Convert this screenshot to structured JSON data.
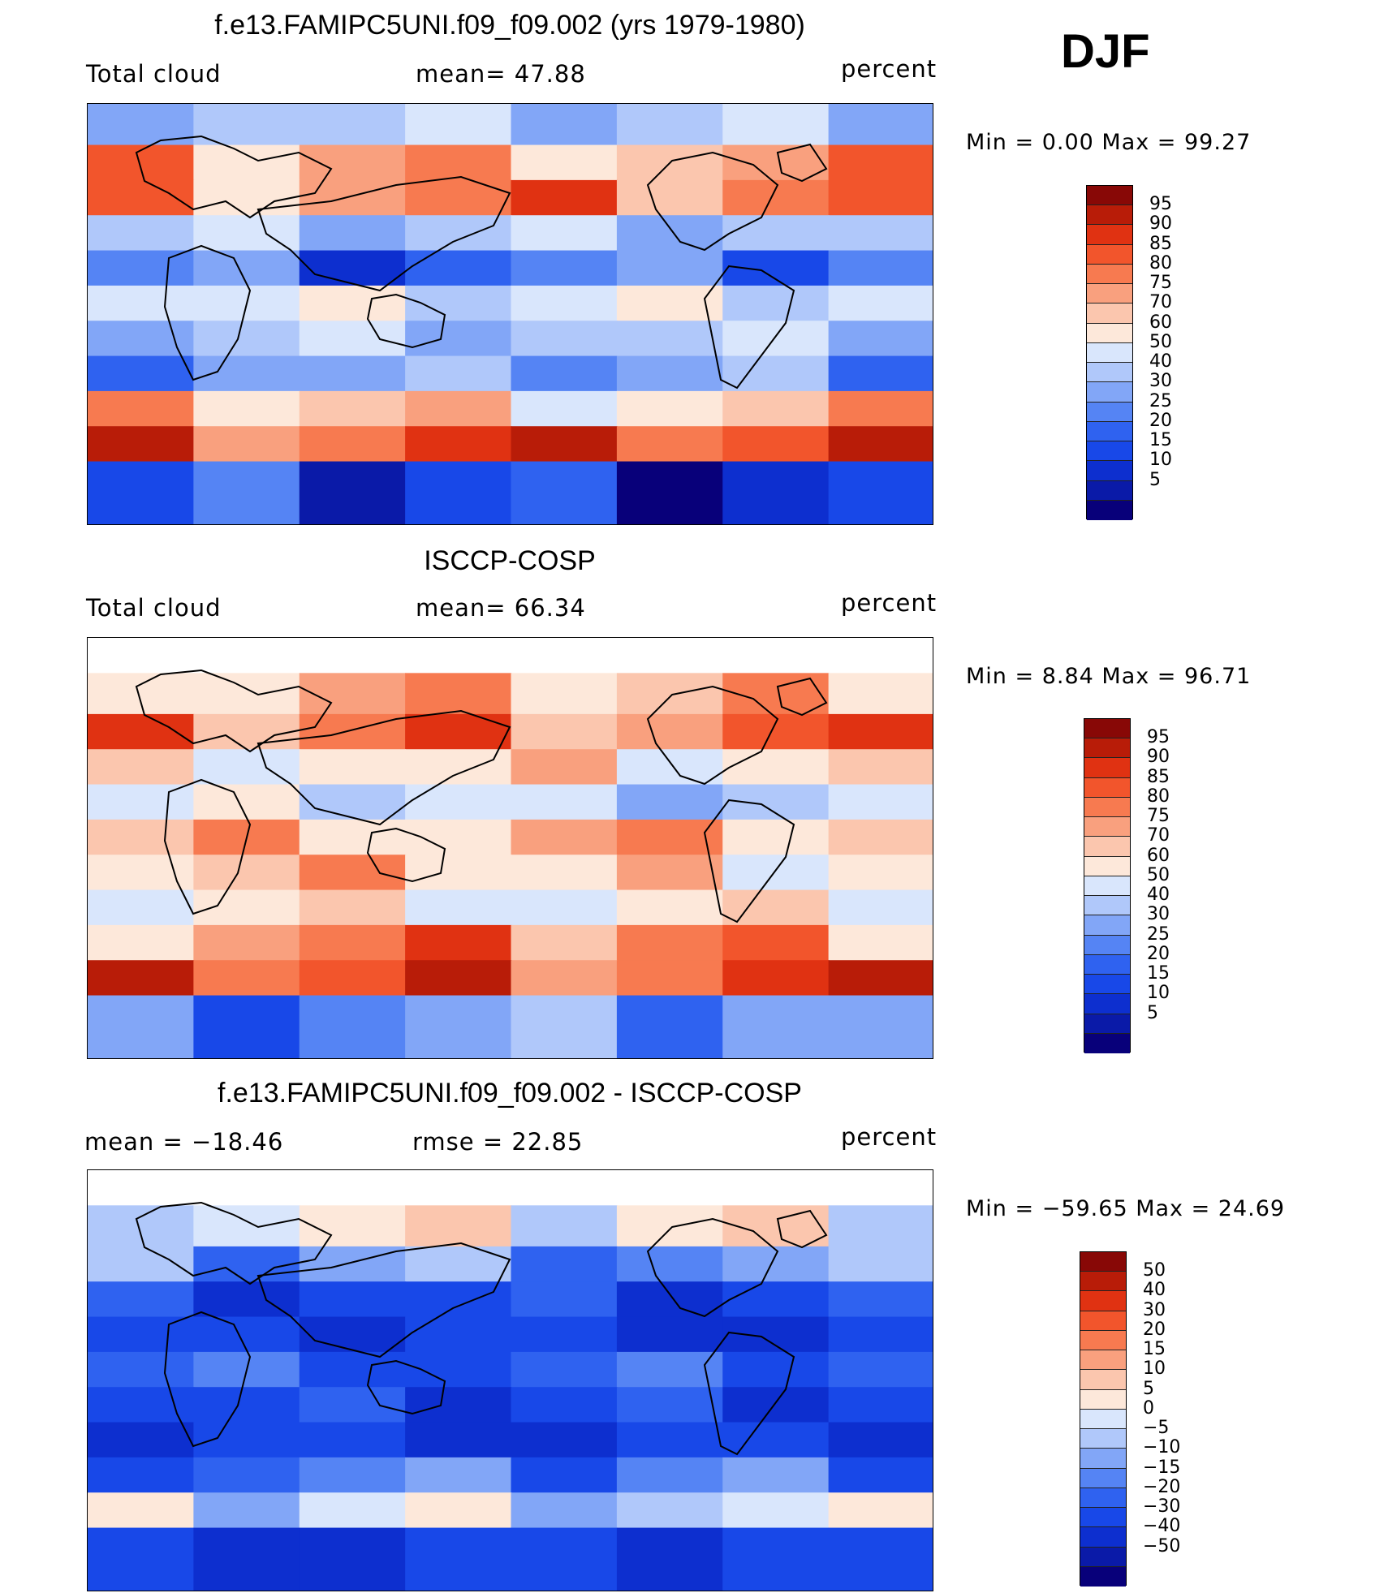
{
  "season": "DJF",
  "colors": {
    "scale_pos": [
      "#08007a",
      "#0a1aa8",
      "#0d2fcf",
      "#1848e8",
      "#2f62f0",
      "#5584f4",
      "#82a6f7",
      "#b0c8fa",
      "#d9e6fc",
      "#fde8da",
      "#fbc6ae",
      "#f9a07e",
      "#f77a50",
      "#f2552c",
      "#e03212",
      "#b81c08",
      "#880806"
    ],
    "scale_diff": [
      "#08007a",
      "#0a1aa8",
      "#0d2fcf",
      "#1848e8",
      "#2f62f0",
      "#5584f4",
      "#82a6f7",
      "#b0c8fa",
      "#d9e6fc",
      "#fde8da",
      "#fbc6ae",
      "#f9a07e",
      "#f77a50",
      "#f2552c",
      "#e03212",
      "#b81c08",
      "#880806"
    ]
  },
  "panels": [
    {
      "title": "f.e13.FAMIPC5UNI.f09_f09.002 (yrs 1979-1980)",
      "left_label": "Total cloud",
      "mid_label": "mean=   47.88",
      "units": "percent",
      "minmax": "Min  =    0.00  Max  =    99.27",
      "colorbar_labels": [
        "95",
        "90",
        "85",
        "80",
        "75",
        "70",
        "60",
        "50",
        "40",
        "30",
        "25",
        "20",
        "15",
        "10",
        "5"
      ]
    },
    {
      "title": "ISCCP-COSP",
      "left_label": "Total cloud",
      "mid_label": "mean=   66.34",
      "units": "percent",
      "minmax": "Min  =    8.84  Max  =    96.71",
      "colorbar_labels": [
        "95",
        "90",
        "85",
        "80",
        "75",
        "70",
        "60",
        "50",
        "40",
        "30",
        "25",
        "20",
        "15",
        "10",
        "5"
      ]
    },
    {
      "title": "f.e13.FAMIPC5UNI.f09_f09.002 - ISCCP-COSP",
      "left_label": "mean  =  −18.46",
      "mid_label": "rmse  =    22.85",
      "units": "percent",
      "minmax": "Min  =  −59.65  Max  =    24.69",
      "colorbar_labels": [
        "50",
        "40",
        "30",
        "20",
        "15",
        "10",
        "5",
        "0",
        "−5",
        "−10",
        "−15",
        "−20",
        "−30",
        "−40",
        "−50"
      ]
    }
  ],
  "chart_data": [
    {
      "type": "heatmap",
      "title": "f.e13.FAMIPC5UNI.f09_f09.002 (yrs 1979-1980)",
      "variable": "Total cloud",
      "units": "percent",
      "mean": 47.88,
      "min": 0.0,
      "max": 99.27,
      "season": "DJF",
      "levels": [
        5,
        10,
        15,
        20,
        25,
        30,
        40,
        50,
        60,
        70,
        75,
        80,
        85,
        90,
        95
      ],
      "lat_band_values": [
        {
          "lat": 80,
          "value": 45
        },
        {
          "lat": 65,
          "value": 75
        },
        {
          "lat": 50,
          "value": 80
        },
        {
          "lat": 35,
          "value": 45
        },
        {
          "lat": 20,
          "value": 25
        },
        {
          "lat": 5,
          "value": 55
        },
        {
          "lat": -10,
          "value": 45
        },
        {
          "lat": -25,
          "value": 35
        },
        {
          "lat": -40,
          "value": 70
        },
        {
          "lat": -55,
          "value": 88
        },
        {
          "lat": -70,
          "value": 15
        }
      ]
    },
    {
      "type": "heatmap",
      "title": "ISCCP-COSP",
      "variable": "Total cloud",
      "units": "percent",
      "mean": 66.34,
      "min": 8.84,
      "max": 96.71,
      "season": "DJF",
      "levels": [
        5,
        10,
        15,
        20,
        25,
        30,
        40,
        50,
        60,
        70,
        75,
        80,
        85,
        90,
        95
      ],
      "lat_band_values": [
        {
          "lat": 65,
          "value": 72
        },
        {
          "lat": 50,
          "value": 82
        },
        {
          "lat": 35,
          "value": 65
        },
        {
          "lat": 20,
          "value": 50
        },
        {
          "lat": 5,
          "value": 72
        },
        {
          "lat": -10,
          "value": 68
        },
        {
          "lat": -25,
          "value": 62
        },
        {
          "lat": -40,
          "value": 80
        },
        {
          "lat": -55,
          "value": 88
        },
        {
          "lat": -70,
          "value": 30
        }
      ]
    },
    {
      "type": "heatmap",
      "title": "f.e13.FAMIPC5UNI.f09_f09.002 - ISCCP-COSP",
      "variable": "Total cloud",
      "units": "percent",
      "mean": -18.46,
      "rmse": 22.85,
      "min": -59.65,
      "max": 24.69,
      "season": "DJF",
      "levels": [
        -50,
        -40,
        -30,
        -20,
        -15,
        -10,
        -5,
        0,
        5,
        10,
        15,
        20,
        30,
        40,
        50
      ],
      "lat_band_values": [
        {
          "lat": 65,
          "value": 5
        },
        {
          "lat": 50,
          "value": -10
        },
        {
          "lat": 35,
          "value": -25
        },
        {
          "lat": 20,
          "value": -30
        },
        {
          "lat": 5,
          "value": -20
        },
        {
          "lat": -10,
          "value": -25
        },
        {
          "lat": -25,
          "value": -30
        },
        {
          "lat": -40,
          "value": -15
        },
        {
          "lat": -55,
          "value": 0
        },
        {
          "lat": -70,
          "value": -30
        }
      ]
    }
  ]
}
